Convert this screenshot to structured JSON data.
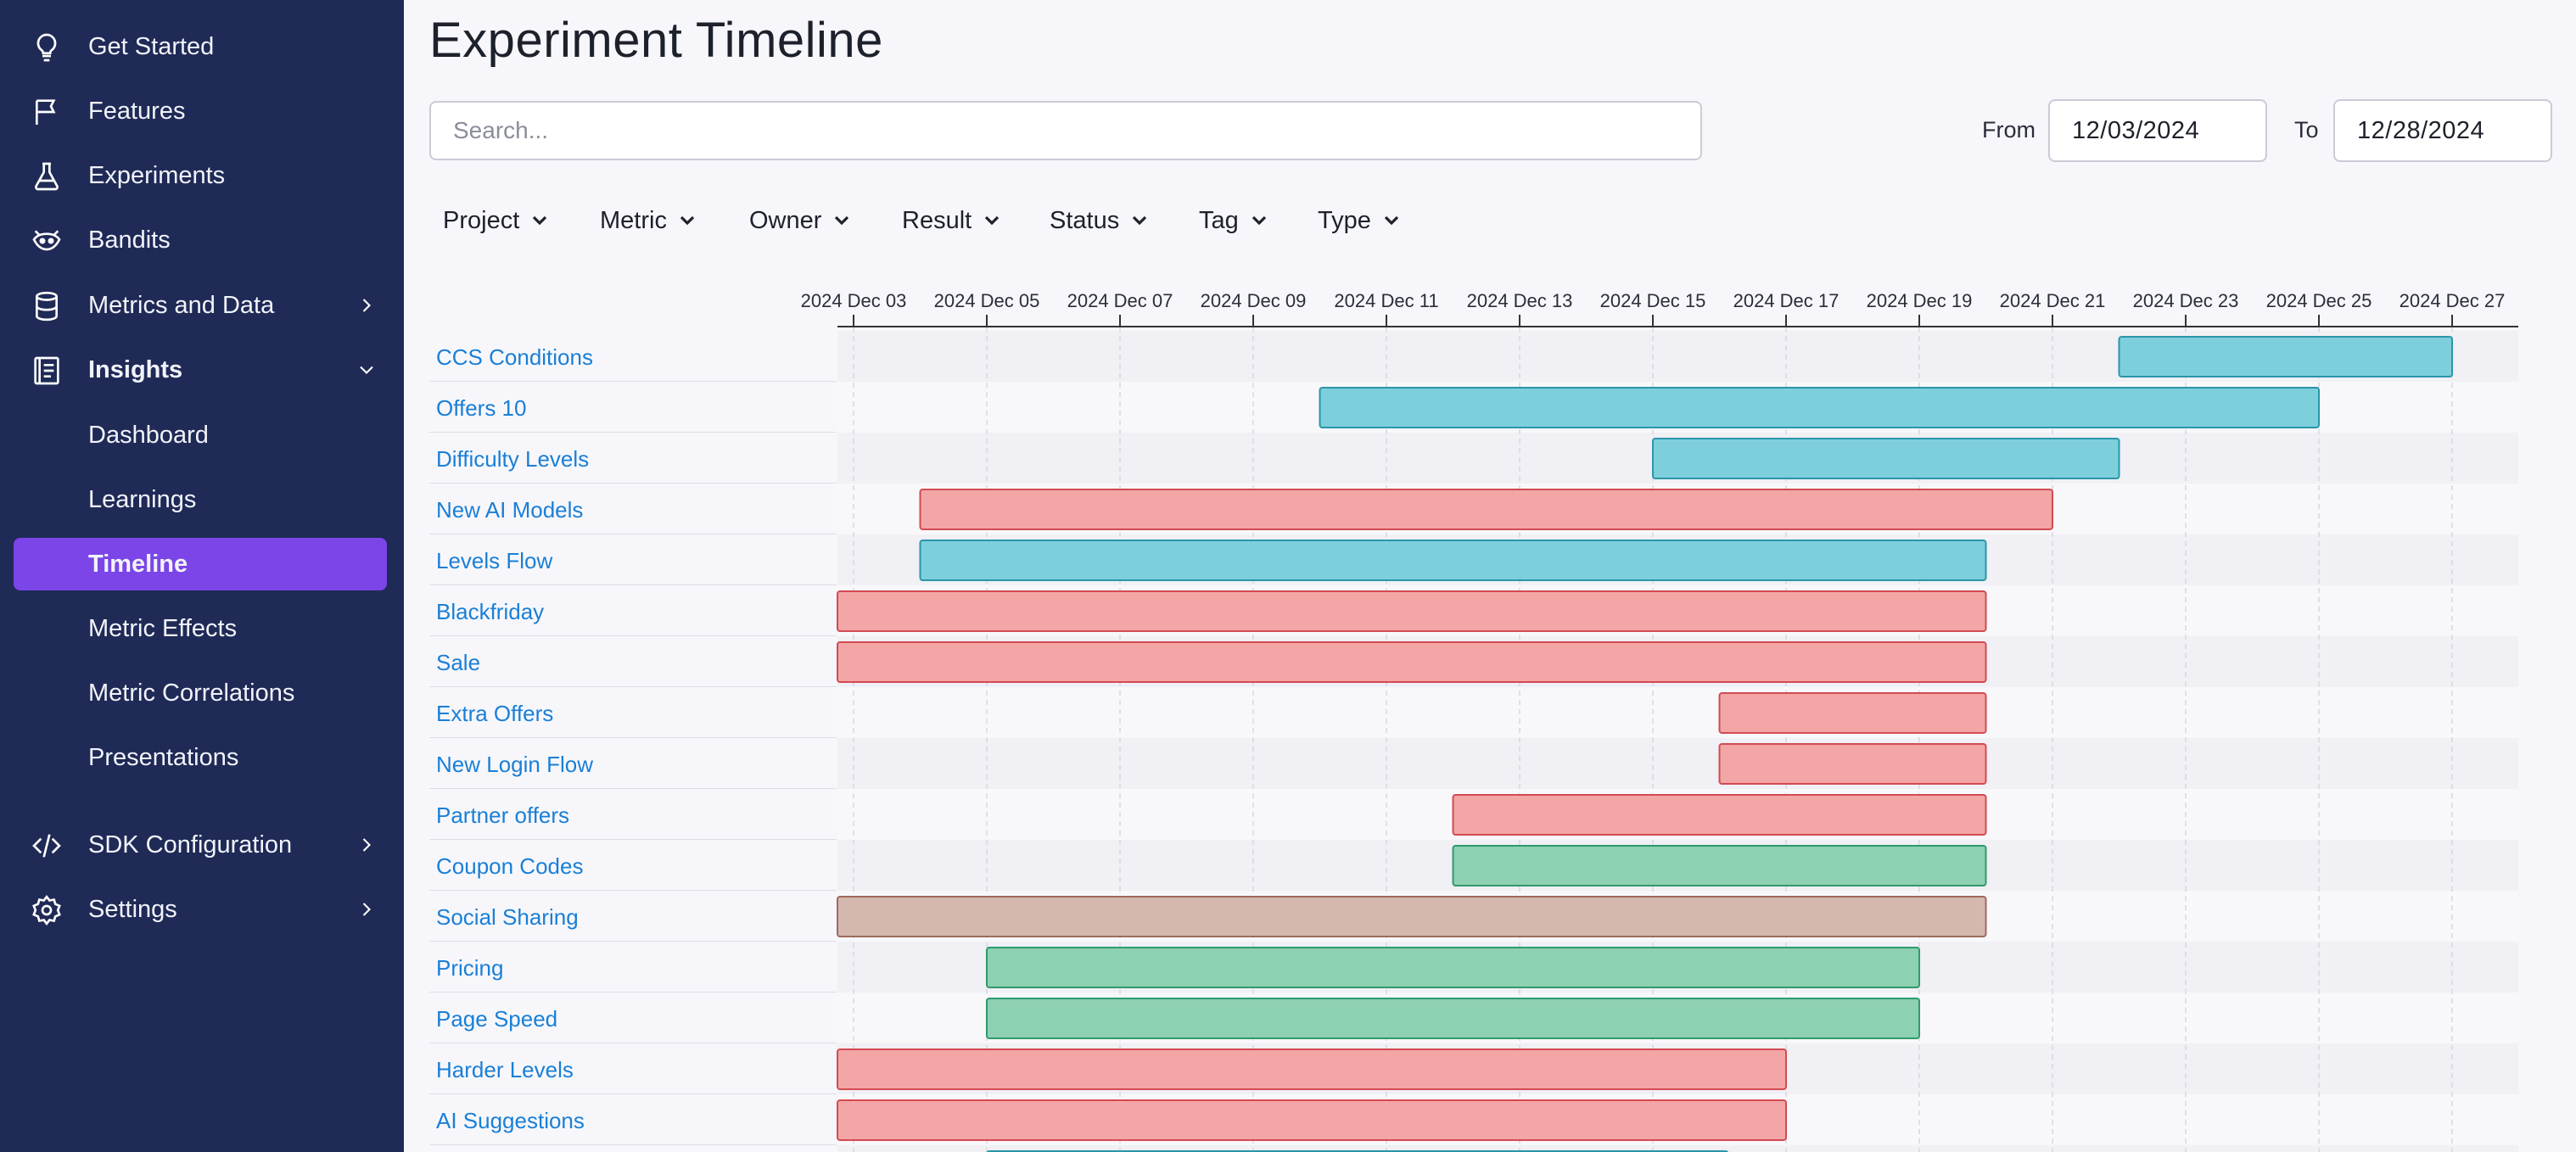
{
  "sidebar": {
    "items": [
      {
        "label": "Get Started",
        "icon": "lightbulb-icon"
      },
      {
        "label": "Features",
        "icon": "flag-icon"
      },
      {
        "label": "Experiments",
        "icon": "flask-icon"
      },
      {
        "label": "Bandits",
        "icon": "raccoon-icon"
      },
      {
        "label": "Metrics and Data",
        "icon": "database-icon"
      },
      {
        "label": "Insights",
        "icon": "insights-icon"
      },
      {
        "label": "SDK Configuration",
        "icon": "code-icon"
      },
      {
        "label": "Settings",
        "icon": "gear-icon"
      }
    ],
    "insights_sub": [
      {
        "label": "Dashboard"
      },
      {
        "label": "Learnings"
      },
      {
        "label": "Timeline",
        "active": true
      },
      {
        "label": "Metric Effects"
      },
      {
        "label": "Metric Correlations"
      },
      {
        "label": "Presentations"
      }
    ]
  },
  "page": {
    "title": "Experiment Timeline",
    "search_placeholder": "Search...",
    "from_label": "From",
    "from_value": "12/03/2024",
    "to_label": "To",
    "to_value": "12/28/2024"
  },
  "filters": [
    "Project",
    "Metric",
    "Owner",
    "Result",
    "Status",
    "Tag",
    "Type"
  ],
  "colors": {
    "sidebar_bg": "#1f2a56",
    "active_item": "#7b45e8",
    "link": "#1a7fd6",
    "running": "#7ecfdc",
    "lost": "#f3a6a6",
    "won": "#8dd0b2",
    "inconclusive": "#d4b8b0"
  },
  "chart_data": {
    "type": "gantt",
    "axis_ticks": [
      "2024 Dec 03",
      "2024 Dec 05",
      "2024 Dec 07",
      "2024 Dec 09",
      "2024 Dec 11",
      "2024 Dec 13",
      "2024 Dec 15",
      "2024 Dec 17",
      "2024 Dec 19",
      "2024 Dec 21",
      "2024 Dec 23",
      "2024 Dec 25",
      "2024 Dec 27"
    ],
    "x_range": [
      "2024-12-02",
      "2024-12-28"
    ],
    "rows": [
      {
        "name": "CCS Conditions",
        "start": "2024-12-22",
        "end": "2024-12-27",
        "status": "running"
      },
      {
        "name": "Offers 10",
        "start": "2024-12-10",
        "end": "2024-12-25",
        "status": "running"
      },
      {
        "name": "Difficulty Levels",
        "start": "2024-12-15",
        "end": "2024-12-22",
        "status": "running"
      },
      {
        "name": "New AI Models",
        "start": "2024-12-04",
        "end": "2024-12-21",
        "status": "lost"
      },
      {
        "name": "Levels Flow",
        "start": "2024-12-04",
        "end": "2024-12-20",
        "status": "running"
      },
      {
        "name": "Blackfriday",
        "start": "2024-12-02",
        "end": "2024-12-20",
        "status": "lost"
      },
      {
        "name": "Sale",
        "start": "2024-12-02",
        "end": "2024-12-20",
        "status": "lost"
      },
      {
        "name": "Extra Offers",
        "start": "2024-12-16",
        "end": "2024-12-20",
        "status": "lost"
      },
      {
        "name": "New Login Flow",
        "start": "2024-12-16",
        "end": "2024-12-20",
        "status": "lost"
      },
      {
        "name": "Partner offers",
        "start": "2024-12-12",
        "end": "2024-12-20",
        "status": "lost"
      },
      {
        "name": "Coupon Codes",
        "start": "2024-12-12",
        "end": "2024-12-20",
        "status": "won"
      },
      {
        "name": "Social Sharing",
        "start": "2024-12-02",
        "end": "2024-12-20",
        "status": "inconclusive"
      },
      {
        "name": "Pricing",
        "start": "2024-12-05",
        "end": "2024-12-19",
        "status": "won"
      },
      {
        "name": "Page Speed",
        "start": "2024-12-05",
        "end": "2024-12-19",
        "status": "won"
      },
      {
        "name": "Harder Levels",
        "start": "2024-12-02",
        "end": "2024-12-17",
        "status": "lost"
      },
      {
        "name": "AI Suggestions",
        "start": "2024-12-02",
        "end": "2024-12-17",
        "status": "lost"
      }
    ]
  }
}
